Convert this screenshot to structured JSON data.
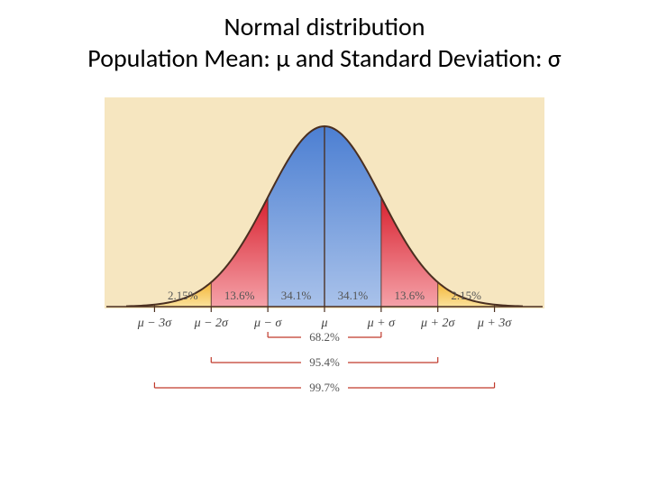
{
  "title": {
    "line1": "Normal distribution",
    "line2": "Population Mean: μ  and Standard Deviation: σ"
  },
  "figure": {
    "type": "normal-distribution-empirical-rule",
    "background_color": "#f6e6c0",
    "curve": {
      "stroke": "#4a2f20",
      "stroke_width": 2
    },
    "fills": {
      "center_top": "#4c7fd2",
      "center_bottom": "#a9c2ea",
      "mid_top": "#d8212f",
      "mid_bottom": "#f5a2a8",
      "tail_top": "#f4b537",
      "tail_bottom": "#fbe29b"
    },
    "baseline_color": "#4a2f20",
    "vline_color": "#4a2f20",
    "band_labels": [
      "2.15%",
      "13.6%",
      "34.1%",
      "34.1%",
      "13.6%",
      "2.15%"
    ],
    "x_tick_labels": [
      "μ − 3σ",
      "μ − 2σ",
      "μ − σ",
      "μ",
      "μ + σ",
      "μ + 2σ",
      "μ + 3σ"
    ],
    "brackets": [
      {
        "label": "68.2%",
        "from_sigma": -1,
        "to_sigma": 1,
        "color": "#c0392b"
      },
      {
        "label": "95.4%",
        "from_sigma": -2,
        "to_sigma": 2,
        "color": "#c0392b"
      },
      {
        "label": "99.7%",
        "from_sigma": -3,
        "to_sigma": 3,
        "color": "#c0392b"
      }
    ],
    "label_fontsize": 13,
    "xlabel_fontsize": 14
  }
}
